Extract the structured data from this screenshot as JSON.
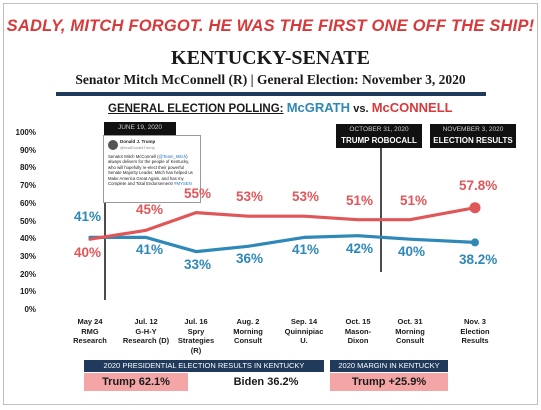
{
  "headline": "SADLY, MITCH FORGOT. HE WAS THE FIRST ONE OFF THE SHIP!",
  "title": "KENTUCKY-SENATE",
  "subtitle": "Senator Mitch McConnell (R) | General Election: November 3, 2020",
  "poll_heading": {
    "prefix": "GENERAL ELECTION POLLING:",
    "candidate_a": "McGRATH",
    "vs": "vs.",
    "candidate_b": "McCONNELL"
  },
  "colors": {
    "mcgrath": "#2e88b8",
    "mcconnell": "#e05759",
    "accent_red": "#d8393a",
    "navy": "#1f3a5a"
  },
  "annotations": [
    {
      "date": "JUNE 19, 2020",
      "label": ""
    },
    {
      "date": "OCTOBER 31, 2020",
      "label": "TRUMP ROBOCALL"
    },
    {
      "date": "NOVEMBER 3, 2020",
      "label": "ELECTION RESULTS"
    }
  ],
  "tweet": {
    "name": "Donald J. Trump",
    "handle": "@realDonaldTrump",
    "text_pre": "Senator Mitch McConnell (",
    "text_tag": "@Team_Mitch",
    "text_mid": ") always delivers for the people of Kentucky, who will hopefully re-elect their powerful Senate Majority Leader. Mitch has helped us Make America Great Again, and has my Complete and Total Endorsement! ",
    "text_hash": "#MYSEN"
  },
  "chart_data": {
    "type": "line",
    "title": "GENERAL ELECTION POLLING: McGRATH vs. McCONNELL",
    "categories": [
      [
        "May 24",
        "RMG",
        "Research"
      ],
      [
        "Jul. 12",
        "G-H-Y",
        "Research (D)"
      ],
      [
        "Jul. 16",
        "Spry",
        "Strategies",
        "(R)"
      ],
      [
        "Aug. 2",
        "Morning",
        "Consult"
      ],
      [
        "Sep. 14",
        "Quinnipiac",
        "U."
      ],
      [
        "Oct. 15",
        "Mason-",
        "Dixon"
      ],
      [
        "Oct. 31",
        "Morning",
        "Consult"
      ],
      [
        "Nov. 3",
        "Election",
        "Results"
      ]
    ],
    "y_ticks": [
      "100%",
      "90%",
      "80%",
      "70%",
      "60%",
      "50%",
      "40%",
      "30%",
      "20%",
      "10%",
      "0%"
    ],
    "ylim": [
      0,
      100
    ],
    "series": [
      {
        "name": "McGRATH",
        "values": [
          41,
          41,
          33,
          36,
          41,
          42,
          40,
          38.2
        ],
        "labels": [
          "41%",
          "41%",
          "33%",
          "36%",
          "41%",
          "42%",
          "40%",
          "38.2%"
        ]
      },
      {
        "name": "McCONNELL",
        "values": [
          40,
          45,
          55,
          53,
          53,
          51,
          51,
          57.8
        ],
        "labels": [
          "40%",
          "45%",
          "55%",
          "53%",
          "53%",
          "51%",
          "51%",
          "57.8%"
        ]
      }
    ]
  },
  "bottom": {
    "left_heading": "2020 PRESIDENTIAL ELECTION RESULTS IN KENTUCKY",
    "trump_result": "Trump 62.1%",
    "biden_result": "Biden 36.2%",
    "right_heading": "2020 MARGIN IN KENTUCKY",
    "margin_result": "Trump +25.9%"
  }
}
